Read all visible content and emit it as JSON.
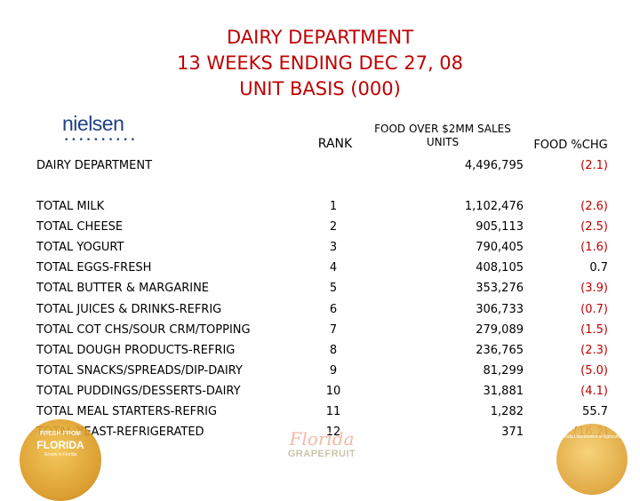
{
  "title": {
    "line1": "DAIRY DEPARTMENT",
    "line2": "13 WEEKS ENDING DEC 27, 08",
    "line3": "UNIT BASIS (000)"
  },
  "logo": {
    "word": "nielsen",
    "dots": "••••••••••"
  },
  "headers": {
    "rank": "RANK",
    "sales_line1": "FOOD OVER $2MM SALES",
    "sales_line2": "UNITS",
    "pct": "FOOD %CHG"
  },
  "department": {
    "label": "DAIRY DEPARTMENT",
    "units": "4,496,795",
    "pct": "(2.1)"
  },
  "rows": [
    {
      "label": "TOTAL MILK",
      "rank": "1",
      "units": "1,102,476",
      "pct": "(2.6)"
    },
    {
      "label": "TOTAL CHEESE",
      "rank": "2",
      "units": "905,113",
      "pct": "(2.5)"
    },
    {
      "label": "TOTAL YOGURT",
      "rank": "3",
      "units": "790,405",
      "pct": "(1.6)"
    },
    {
      "label": "TOTAL EGGS-FRESH",
      "rank": "4",
      "units": "408,105",
      "pct": "0.7"
    },
    {
      "label": "TOTAL BUTTER & MARGARINE",
      "rank": "5",
      "units": "353,276",
      "pct": "(3.9)"
    },
    {
      "label": "TOTAL JUICES & DRINKS-REFRIG",
      "rank": "6",
      "units": "306,733",
      "pct": "(0.7)"
    },
    {
      "label": "TOTAL COT CHS/SOUR CRM/TOPPING",
      "rank": "7",
      "units": "279,089",
      "pct": "(1.5)"
    },
    {
      "label": "TOTAL DOUGH PRODUCTS-REFRIG",
      "rank": "8",
      "units": "236,765",
      "pct": "(2.3)"
    },
    {
      "label": "TOTAL SNACKS/SPREADS/DIP-DAIRY",
      "rank": "9",
      "units": "81,299",
      "pct": "(5.0)"
    },
    {
      "label": "TOTAL PUDDINGS/DESSERTS-DAIRY",
      "rank": "10",
      "units": "31,881",
      "pct": "(4.1)"
    },
    {
      "label": "TOTAL MEAL STARTERS-REFRIG",
      "rank": "11",
      "units": "1,282",
      "pct": "55.7"
    },
    {
      "label": "TOTAL YEAST-REFRIGERATED",
      "rank": "12",
      "units": "371",
      "pct": "(16.2)"
    }
  ],
  "badge_left": {
    "line1": "FRESH FROM",
    "line2": "FLORIDA",
    "line3": "Grown in Florida"
  },
  "badge_right": {
    "line1": "Florida Department of Agriculture"
  },
  "grapefruit_logo": {
    "script": "Florida",
    "word": "GRAPEFRUIT"
  },
  "colors": {
    "title": "#c00000",
    "negative": "#c00000",
    "positive": "#000000",
    "logo": "#1f3f86"
  }
}
